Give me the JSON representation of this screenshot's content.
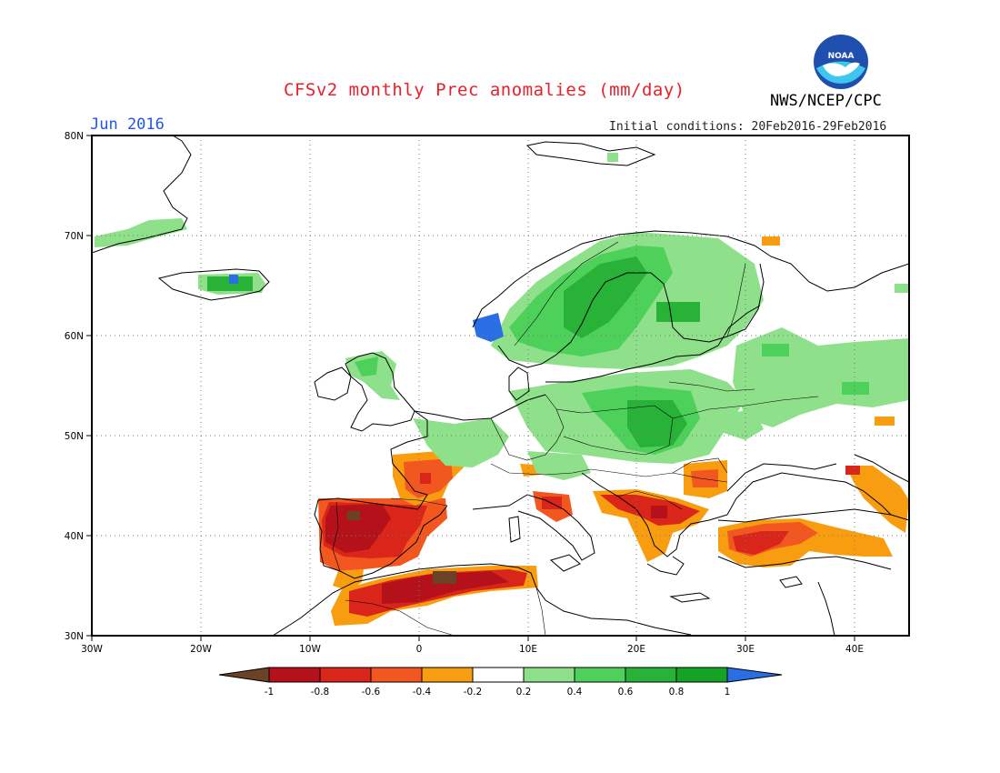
{
  "header": {
    "title": "CFSv2 monthly Prec anomalies (mm/day)",
    "agency": "NWS/NCEP/CPC",
    "logo_text": "NOAA",
    "month": "Jun 2016",
    "initial_conditions": "Initial conditions: 20Feb2016-29Feb2016"
  },
  "map": {
    "lat_labels": [
      "80N",
      "70N",
      "60N",
      "50N",
      "40N",
      "30N"
    ],
    "lon_labels": [
      "30W",
      "20W",
      "10W",
      "0",
      "10E",
      "20E",
      "30E",
      "40E"
    ],
    "lon_range": [
      -30,
      45
    ],
    "lat_range": [
      30,
      80
    ],
    "gridlines": "dotted"
  },
  "colorbar": {
    "labels": [
      "-1",
      "-0.8",
      "-0.6",
      "-0.4",
      "-0.2",
      "0.2",
      "0.4",
      "0.6",
      "0.8",
      "1"
    ],
    "colors": [
      "#6b4226",
      "#b4111a",
      "#d9251a",
      "#f35720",
      "#f99d10",
      "#ffffff",
      "#8ee08a",
      "#4ed15a",
      "#28b238",
      "#14a323",
      "#2a6ee4"
    ]
  },
  "anomaly_regions": [
    {
      "region": "Iberian Peninsula",
      "sign": "dry",
      "level": "-0.6 to -1"
    },
    {
      "region": "Western France",
      "sign": "dry",
      "level": "-0.2 to -0.6"
    },
    {
      "region": "North Africa / Algeria",
      "sign": "dry",
      "level": "-0.6 to -1"
    },
    {
      "region": "Italy / Balkans",
      "sign": "dry",
      "level": "-0.2 to -0.8"
    },
    {
      "region": "Turkey",
      "sign": "dry",
      "level": "-0.2 to -0.8"
    },
    {
      "region": "Scandinavia",
      "sign": "wet",
      "level": "0.2 to 0.8"
    },
    {
      "region": "Western Norway",
      "sign": "wet",
      "level": "above 1"
    },
    {
      "region": "Poland / Eastern Europe",
      "sign": "wet",
      "level": "0.2 to 0.8"
    },
    {
      "region": "Iceland",
      "sign": "wet",
      "level": "0.4 to 1"
    },
    {
      "region": "Western Russia",
      "sign": "wet",
      "level": "0.2 to 0.4"
    }
  ]
}
